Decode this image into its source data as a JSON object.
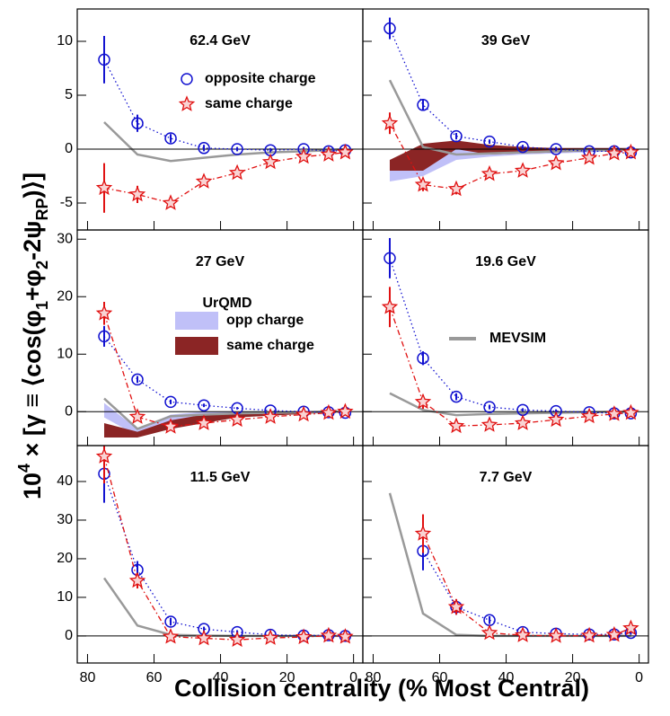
{
  "figure": {
    "x_label": "Collision centrality (% Most Central)",
    "y_label": [
      {
        "text": "10",
        "shift": "normal"
      },
      {
        "text": "4",
        "shift": "super"
      },
      {
        "text": " × [γ ≡ ⟨cos(φ",
        "shift": "normal"
      },
      {
        "text": "1",
        "shift": "sub"
      },
      {
        "text": "+φ",
        "shift": "normal"
      },
      {
        "text": "2",
        "shift": "sub"
      },
      {
        "text": "-2ψ",
        "shift": "normal"
      },
      {
        "text": "RP",
        "shift": "sub"
      },
      {
        "text": ")⟩]",
        "shift": "normal"
      }
    ]
  },
  "chart_data": [
    {
      "type": "scatter",
      "title": "62.4 GeV",
      "x": [
        75,
        65,
        55,
        45,
        35,
        25,
        15,
        7.5,
        2.5
      ],
      "xlim": [
        83.1,
        -2.8
      ],
      "xticks": [
        80,
        60,
        40,
        20,
        0
      ],
      "xtick_labels": false,
      "ylim": [
        -7.5,
        13
      ],
      "yticks": [
        -5,
        0,
        5,
        10
      ],
      "ytick_labels": true,
      "series": [
        {
          "style": "line",
          "color": "#999999",
          "values": [
            2.5,
            -0.5,
            -1.1,
            -0.8,
            -0.5,
            -0.3,
            -0.2,
            -0.1,
            0
          ]
        },
        {
          "style": "points",
          "name": "opposite charge",
          "marker": "circle",
          "line": "dotted",
          "color": "#1010d0",
          "values": [
            8.3,
            2.4,
            1.0,
            0.1,
            0.0,
            -0.1,
            0.0,
            -0.2,
            -0.1
          ],
          "errors": [
            2.2,
            0.8,
            0.4,
            0.3,
            0.2,
            0.2,
            0.2,
            0.2,
            0.2
          ]
        },
        {
          "style": "points",
          "name": "same charge",
          "marker": "star",
          "line": "dashdot",
          "color": "#e01010",
          "values": [
            -3.6,
            -4.2,
            -5.0,
            -3.0,
            -2.2,
            -1.2,
            -0.7,
            -0.5,
            -0.3
          ],
          "errors": [
            2.3,
            0.8,
            0.4,
            0.3,
            0.2,
            0.2,
            0.2,
            0.2,
            0.2
          ]
        }
      ]
    },
    {
      "type": "scatter",
      "title": "39 GeV",
      "x": [
        75,
        65,
        55,
        45,
        35,
        25,
        15,
        7.5,
        2.5
      ],
      "xlim": [
        83.1,
        -2.8
      ],
      "xticks": [
        80,
        60,
        40,
        20,
        0
      ],
      "xtick_labels": false,
      "ylim": [
        -7.5,
        13
      ],
      "yticks": [
        -5,
        0,
        5,
        10
      ],
      "ytick_labels": false,
      "series": [
        {
          "style": "band",
          "color": "#c0c0f8",
          "low": [
            -3,
            -2.5,
            -1,
            -0.7,
            -0.5,
            -0.4,
            -0.3,
            -0.2,
            -0.1
          ],
          "high": [
            -1,
            -1,
            0.5,
            0.2,
            0.1,
            0.1,
            0.1,
            0.1,
            0.1
          ]
        },
        {
          "style": "band",
          "color": "#8b2525",
          "low": [
            -2,
            -2,
            0,
            -0.5,
            -0.4,
            -0.3,
            -0.2,
            -0.1,
            -0.1
          ],
          "high": [
            -1,
            0.5,
            0.8,
            0.4,
            0.2,
            0.1,
            0.1,
            0.1,
            0.1
          ]
        },
        {
          "style": "line",
          "color": "#999999",
          "values": [
            6.4,
            0.2,
            -0.5,
            -0.4,
            -0.3,
            -0.2,
            -0.1,
            -0.1,
            0
          ]
        },
        {
          "style": "points",
          "marker": "circle",
          "line": "dotted",
          "color": "#1010d0",
          "values": [
            11.2,
            4.1,
            1.2,
            0.7,
            0.2,
            0.0,
            -0.2,
            -0.2,
            -0.3
          ],
          "errors": [
            1.0,
            0.5,
            0.3,
            0.2,
            0.2,
            0.2,
            0.2,
            0.2,
            0.2
          ]
        },
        {
          "style": "points",
          "marker": "star",
          "line": "dashdot",
          "color": "#e01010",
          "values": [
            2.4,
            -3.3,
            -3.7,
            -2.3,
            -2.0,
            -1.3,
            -0.8,
            -0.4,
            -0.3
          ],
          "errors": [
            1.0,
            0.6,
            0.5,
            0.3,
            0.2,
            0.2,
            0.2,
            0.2,
            0.2
          ]
        }
      ]
    },
    {
      "type": "scatter",
      "title": "27 GeV",
      "x": [
        75,
        65,
        55,
        45,
        35,
        25,
        15,
        7.5,
        2.5
      ],
      "xlim": [
        83.1,
        -2.8
      ],
      "xticks": [
        80,
        60,
        40,
        20,
        0
      ],
      "xtick_labels": false,
      "ylim": [
        -5.9,
        31.6
      ],
      "yticks": [
        0,
        10,
        20,
        30
      ],
      "ytick_labels": true,
      "legend_title": "UrQMD",
      "series": [
        {
          "style": "band",
          "name": "opp charge",
          "color": "#c0c0f8",
          "low": [
            -1,
            -4.2,
            -2,
            -0.8,
            -0.5,
            -0.3,
            -0.3,
            -0.2,
            -0.2
          ],
          "high": [
            1.5,
            -3,
            -0.5,
            0,
            0,
            0,
            0,
            0,
            0
          ]
        },
        {
          "style": "band",
          "name": "same charge",
          "color": "#8b2525",
          "low": [
            -4.5,
            -4.5,
            -3,
            -2,
            -1,
            -0.7,
            -0.4,
            -0.2,
            -0.1
          ],
          "high": [
            -2,
            -3.5,
            -1.5,
            -0.5,
            -0.3,
            -0.2,
            0,
            0,
            0
          ]
        },
        {
          "style": "line",
          "color": "#999999",
          "values": [
            2.3,
            -3.0,
            -0.8,
            -0.5,
            -0.3,
            -0.2,
            -0.1,
            0,
            0
          ]
        },
        {
          "style": "points",
          "marker": "circle",
          "line": "dotted",
          "color": "#1010d0",
          "values": [
            13.1,
            5.6,
            1.7,
            1.1,
            0.6,
            0.2,
            0.0,
            -0.1,
            -0.2
          ],
          "errors": [
            1.8,
            0.6,
            0.4,
            0.3,
            0.2,
            0.2,
            0.2,
            0.2,
            0.2
          ]
        },
        {
          "style": "points",
          "marker": "star",
          "line": "dashdot",
          "color": "#e01010",
          "values": [
            17.1,
            -0.9,
            -2.6,
            -2.0,
            -1.4,
            -0.9,
            -0.5,
            -0.2,
            0.0
          ],
          "errors": [
            2.0,
            0.6,
            0.4,
            0.3,
            0.2,
            0.2,
            0.2,
            0.2,
            0.2
          ]
        }
      ]
    },
    {
      "type": "scatter",
      "title": "19.6 GeV",
      "x": [
        75,
        65,
        55,
        45,
        35,
        25,
        15,
        7.5,
        2.5
      ],
      "xlim": [
        83.1,
        -2.8
      ],
      "xticks": [
        80,
        60,
        40,
        20,
        0
      ],
      "xtick_labels": false,
      "ylim": [
        -5.9,
        31.6
      ],
      "yticks": [
        0,
        10,
        20,
        30
      ],
      "ytick_labels": false,
      "series": [
        {
          "style": "line",
          "name": "MEVSIM",
          "color": "#999999",
          "values": [
            3.2,
            0.3,
            -0.6,
            -0.4,
            -0.3,
            -0.2,
            -0.1,
            0,
            0
          ]
        },
        {
          "style": "points",
          "marker": "circle",
          "line": "dotted",
          "color": "#1010d0",
          "values": [
            26.7,
            9.3,
            2.6,
            0.8,
            0.3,
            0.1,
            -0.1,
            -0.3,
            -0.3
          ],
          "errors": [
            3.5,
            1.2,
            0.6,
            0.4,
            0.3,
            0.3,
            0.3,
            0.3,
            0.3
          ]
        },
        {
          "style": "points",
          "marker": "star",
          "line": "dashdot",
          "color": "#e01010",
          "values": [
            18.2,
            1.7,
            -2.5,
            -2.3,
            -2.0,
            -1.4,
            -0.8,
            -0.4,
            -0.2
          ],
          "errors": [
            3.5,
            1.2,
            0.6,
            0.4,
            0.3,
            0.3,
            0.3,
            0.3,
            0.3
          ]
        }
      ]
    },
    {
      "type": "scatter",
      "title": "11.5 GeV",
      "x": [
        75,
        65,
        55,
        45,
        35,
        25,
        15,
        7.5,
        2.5
      ],
      "xlim": [
        83.1,
        -2.8
      ],
      "xticks": [
        80,
        60,
        40,
        20,
        0
      ],
      "xtick_labels": true,
      "ylim": [
        -7,
        49.3
      ],
      "yticks": [
        0,
        10,
        20,
        30,
        40
      ],
      "ytick_labels": true,
      "series": [
        {
          "style": "line",
          "color": "#999999",
          "values": [
            15,
            2.7,
            0.3,
            0.1,
            0,
            0,
            0,
            0,
            0
          ]
        },
        {
          "style": "points",
          "marker": "circle",
          "line": "dotted",
          "color": "#1010d0",
          "values": [
            42,
            17.1,
            3.7,
            1.8,
            1.0,
            0.3,
            0.1,
            0.2,
            0.0
          ],
          "errors": [
            7.5,
            2.3,
            1.0,
            0.6,
            0.5,
            0.5,
            0.5,
            0.5,
            0.5
          ]
        },
        {
          "style": "points",
          "marker": "star",
          "line": "dashdot",
          "color": "#e01010",
          "values": [
            46.5,
            14.3,
            -0.2,
            -0.6,
            -1.0,
            -0.5,
            -0.3,
            0.1,
            -0.2
          ],
          "errors": [
            7,
            2,
            1,
            0.6,
            0.5,
            0.5,
            0.5,
            0.5,
            0.5
          ]
        }
      ]
    },
    {
      "type": "scatter",
      "title": "7.7 GeV",
      "x": [
        75,
        65,
        55,
        45,
        35,
        25,
        15,
        7.5,
        2.5
      ],
      "xlim": [
        83.1,
        -2.8
      ],
      "xticks": [
        80,
        60,
        40,
        20,
        0
      ],
      "xtick_labels": true,
      "ylim": [
        -7,
        49.3
      ],
      "yticks": [
        0,
        10,
        20,
        30,
        40
      ],
      "ytick_labels": false,
      "series": [
        {
          "style": "line",
          "color": "#999999",
          "values": [
            37,
            5.8,
            0.3,
            0,
            0,
            0,
            0,
            0,
            0
          ]
        },
        {
          "style": "points",
          "marker": "circle",
          "line": "dotted",
          "color": "#1010d0",
          "values": [
            null,
            22.0,
            7.5,
            4.1,
            1.0,
            0.6,
            0.4,
            0.4,
            0.8
          ],
          "errors": [
            null,
            5,
            2,
            1,
            0.6,
            0.5,
            0.5,
            0.5,
            0.5
          ]
        },
        {
          "style": "points",
          "marker": "star",
          "line": "dashdot",
          "color": "#e01010",
          "values": [
            null,
            26.5,
            7.5,
            0.8,
            0.2,
            0.0,
            0.1,
            0.3,
            2.0
          ],
          "errors": [
            null,
            5,
            2,
            1,
            0.6,
            0.5,
            0.5,
            0.5,
            0.5
          ]
        }
      ]
    }
  ]
}
